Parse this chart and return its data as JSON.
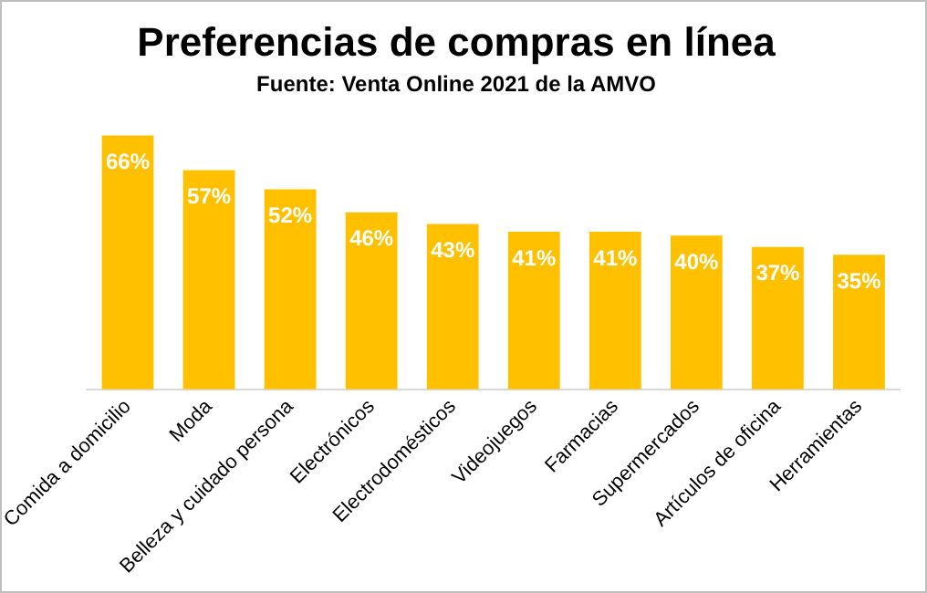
{
  "chart_data": {
    "type": "bar",
    "title": "Preferencias de compras en línea",
    "subtitle": "Fuente: Venta Online 2021 de la AMVO",
    "categories": [
      "Comida a domicilio",
      "Moda",
      "Belleza y cuidado persona",
      "Electrónicos",
      "Electrodomésticos",
      "Videojuegos",
      "Farmacias",
      "Supermercados",
      "Artículos de oficina",
      "Herramientas"
    ],
    "values": [
      66,
      57,
      52,
      46,
      43,
      41,
      41,
      40,
      37,
      35
    ],
    "value_labels": [
      "66%",
      "57%",
      "52%",
      "46%",
      "43%",
      "41%",
      "41%",
      "40%",
      "37%",
      "35%"
    ],
    "color": "#ffc000",
    "grid": false,
    "legend": false,
    "tick_labels": "x"
  }
}
